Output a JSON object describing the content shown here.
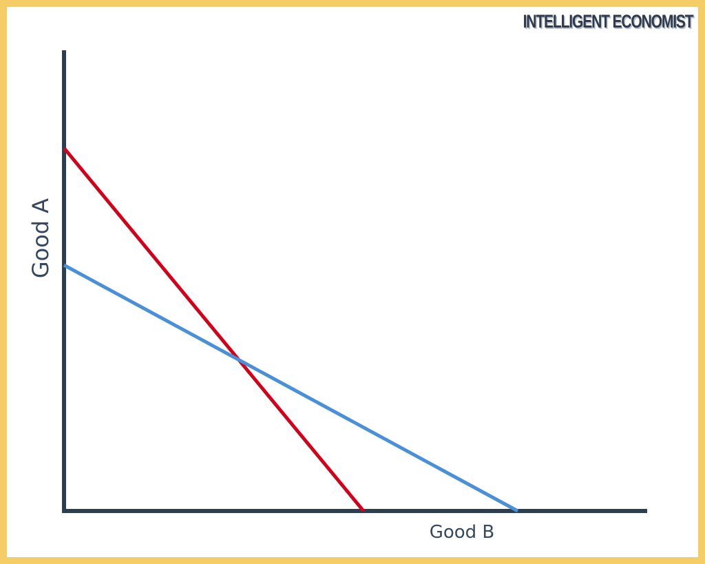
{
  "brand": "INTELLIGENT ECONOMIST",
  "axes": {
    "y_label": "Good A",
    "x_label": "Good B"
  },
  "colors": {
    "border": "#f5cd67",
    "axis": "#2c3e50",
    "line_1": "#d0021b",
    "line_2": "#4a90d9"
  },
  "lines": [
    {
      "color_key": "line_1",
      "description_free": true
    },
    {
      "color_key": "line_2",
      "description_free": true
    }
  ]
}
